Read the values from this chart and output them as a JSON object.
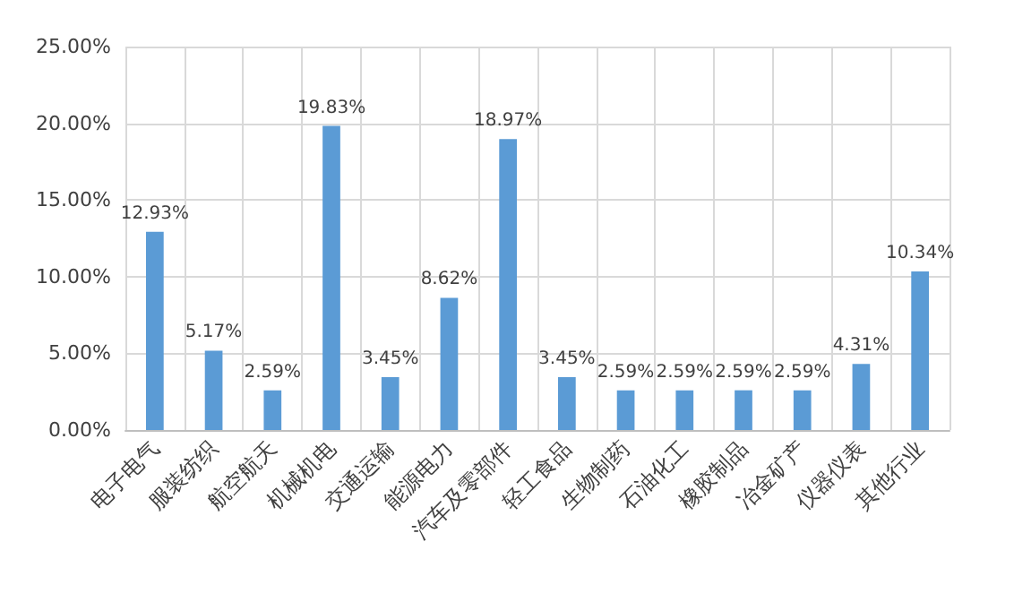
{
  "chart_data": {
    "type": "bar",
    "categories": [
      "电子电气",
      "服装纺织",
      "航空航天",
      "机械机电",
      "交通运输",
      "能源电力",
      "汽车及零部件",
      "轻工食品",
      "生物制药",
      "石油化工",
      "橡胶制品",
      "冶金矿产",
      "仪器仪表",
      "其他行业"
    ],
    "values": [
      12.93,
      5.17,
      2.59,
      19.83,
      3.45,
      8.62,
      18.97,
      3.45,
      2.59,
      2.59,
      2.59,
      2.59,
      4.31,
      10.34
    ],
    "value_labels": [
      "12.93%",
      "5.17%",
      "2.59%",
      "19.83%",
      "3.45%",
      "8.62%",
      "18.97%",
      "3.45%",
      "2.59%",
      "2.59%",
      "2.59%",
      "2.59%",
      "4.31%",
      "10.34%"
    ],
    "color": "#5b9bd5",
    "ylim": [
      0,
      25
    ],
    "yticks": [
      {
        "value": 0,
        "label": "0.00%"
      },
      {
        "value": 5,
        "label": "5.00%"
      },
      {
        "value": 10,
        "label": "10.00%"
      },
      {
        "value": 15,
        "label": "15.00%"
      },
      {
        "value": 20,
        "label": "20.00%"
      },
      {
        "value": 25,
        "label": "25.00%"
      }
    ],
    "grid": true
  }
}
